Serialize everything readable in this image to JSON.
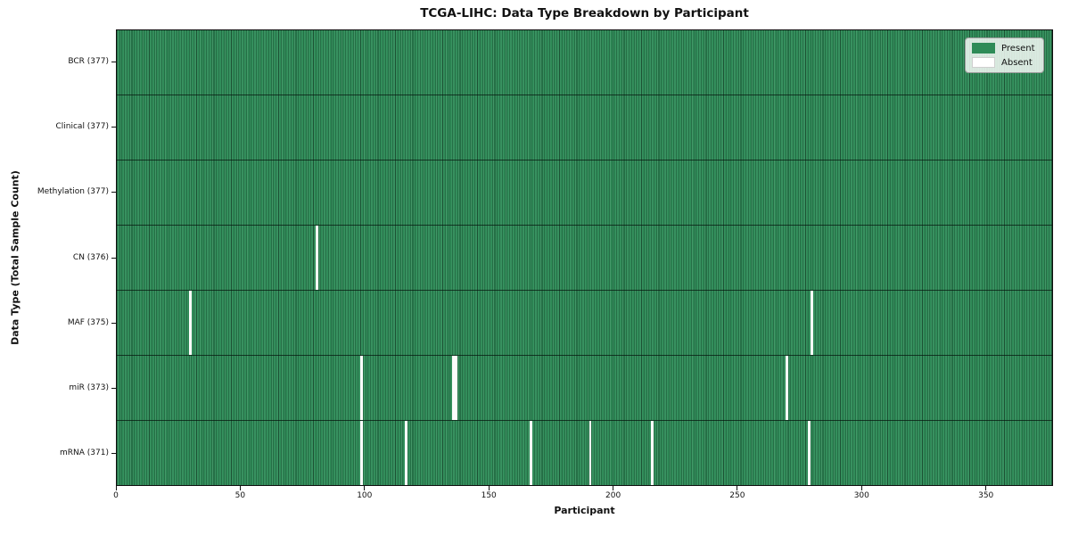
{
  "title": "TCGA-LIHC: Data Type Breakdown by Participant",
  "x_axis_title": "Participant",
  "y_axis_title": "Data Type (Total Sample Count)",
  "legend": {
    "present_label": "Present",
    "absent_label": "Absent"
  },
  "chart_data": {
    "type": "heatmap",
    "title": "TCGA-LIHC: Data Type Breakdown by Participant",
    "xlabel": "Participant",
    "ylabel": "Data Type (Total Sample Count)",
    "x_range": [
      0,
      377
    ],
    "x_ticks": [
      0,
      50,
      100,
      150,
      200,
      250,
      300,
      350
    ],
    "total_participants": 377,
    "legend_entries": [
      {
        "label": "Present",
        "color": "#2e8b57"
      },
      {
        "label": "Absent",
        "color": "#ffffff"
      }
    ],
    "rows": [
      {
        "label": "BCR (377)",
        "data_type": "BCR",
        "present_count": 377,
        "absent_participants": []
      },
      {
        "label": "Clinical (377)",
        "data_type": "Clinical",
        "present_count": 377,
        "absent_participants": []
      },
      {
        "label": "Methylation (377)",
        "data_type": "Methylation",
        "present_count": 377,
        "absent_participants": []
      },
      {
        "label": "CN (376)",
        "data_type": "CN",
        "present_count": 376,
        "absent_participants": [
          80
        ]
      },
      {
        "label": "MAF (375)",
        "data_type": "MAF",
        "present_count": 375,
        "absent_participants": [
          29,
          279
        ]
      },
      {
        "label": "miR (373)",
        "data_type": "miR",
        "present_count": 373,
        "absent_participants": [
          98,
          135,
          136,
          269
        ]
      },
      {
        "label": "mRNA (371)",
        "data_type": "mRNA",
        "present_count": 371,
        "absent_participants": [
          98,
          116,
          166,
          190,
          215,
          278
        ]
      }
    ],
    "colors": {
      "present": "#2e8b57",
      "absent": "#ffffff"
    },
    "layout": {
      "legend_position": "upper right",
      "grid": "cell-borders"
    }
  }
}
